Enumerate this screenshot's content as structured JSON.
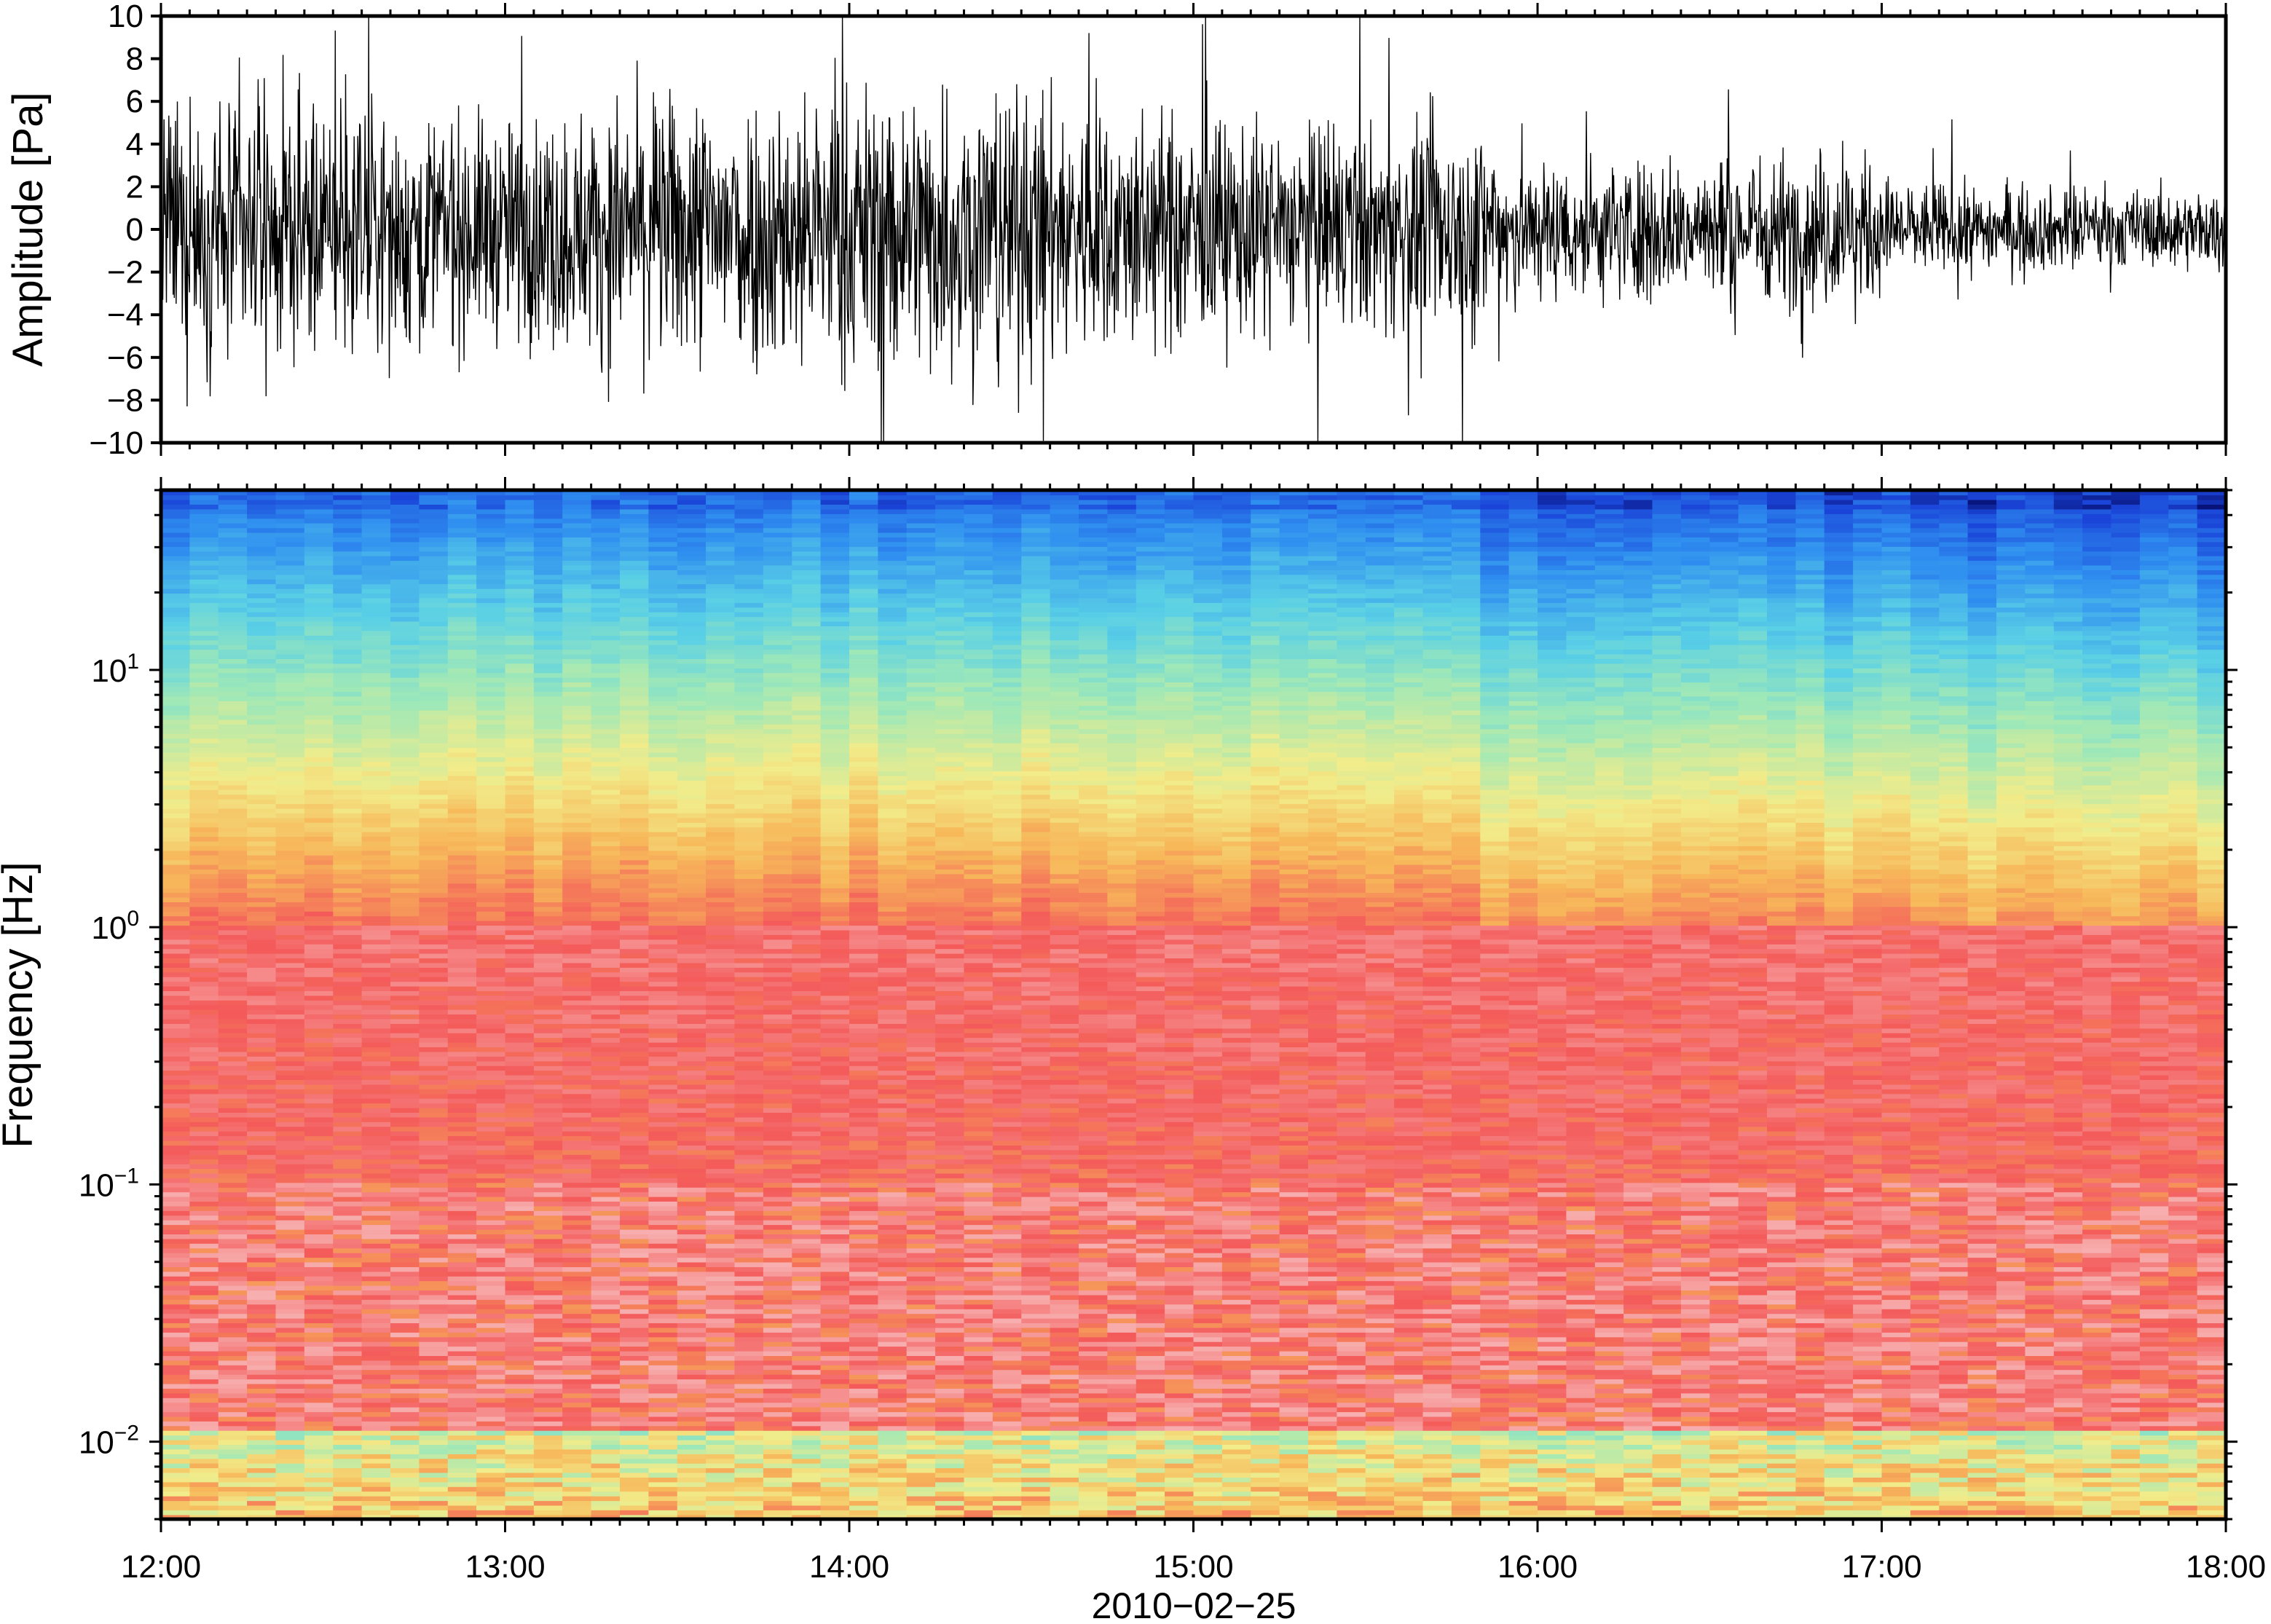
{
  "chart_data": [
    {
      "type": "line",
      "panel": "waveform",
      "ylabel": "Amplitude [Pa]",
      "ylim": [
        -10,
        10
      ],
      "y_ticks": [
        10,
        8,
        6,
        4,
        2,
        0,
        -2,
        -4,
        -6,
        -8,
        -10
      ],
      "y_tick_labels": [
        "10",
        "8",
        "6",
        "4",
        "2",
        "0",
        "−2",
        "−4",
        "−6",
        "−8",
        "−10"
      ],
      "x_range_hours": [
        12,
        18
      ],
      "line_color": "#000000",
      "envelope": {
        "hours": [
          12.0,
          12.5,
          13.0,
          13.5,
          14.0,
          14.4,
          14.8,
          15.2,
          15.6,
          15.85,
          16.0,
          16.5,
          16.9,
          17.05,
          17.5,
          18.0
        ],
        "amplitude_pa": [
          5.0,
          5.2,
          4.6,
          5.6,
          6.0,
          6.2,
          5.0,
          4.4,
          4.2,
          4.6,
          2.9,
          3.0,
          3.4,
          2.0,
          1.7,
          1.6
        ]
      }
    },
    {
      "type": "heatmap",
      "panel": "spectrogram",
      "ylabel": "Frequency [Hz]",
      "y_scale": "log",
      "ylim": [
        0.005,
        50
      ],
      "y_ticks": [
        {
          "value": 10,
          "base": "10",
          "exp": "1"
        },
        {
          "value": 1,
          "base": "10",
          "exp": "0"
        },
        {
          "value": 0.1,
          "base": "10",
          "exp": "−1"
        },
        {
          "value": 0.01,
          "base": "10",
          "exp": "−2"
        }
      ],
      "x_range_hours": [
        12,
        18
      ],
      "x_ticks": [
        "12:00",
        "13:00",
        "14:00",
        "15:00",
        "16:00",
        "17:00",
        "18:00"
      ],
      "xlabel": "2010−02−25",
      "colormap": [
        "#08137a",
        "#1a44d8",
        "#2f8ef0",
        "#5ad0e6",
        "#9ee8b8",
        "#f2ec8a",
        "#f7b85a",
        "#f45a5a",
        "#f7a6a6",
        "#fbe4e4"
      ]
    }
  ]
}
